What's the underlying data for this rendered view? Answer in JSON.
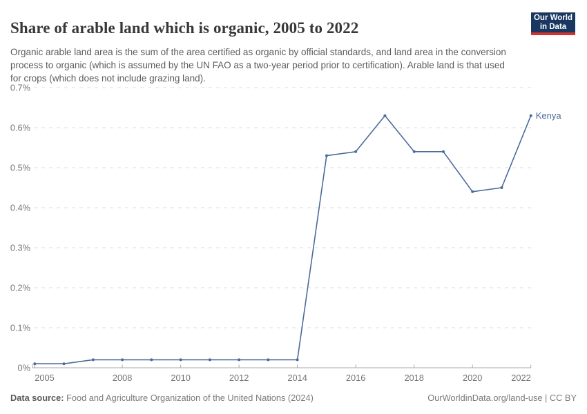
{
  "header": {
    "title": "Share of arable land which is organic, 2005 to 2022",
    "subtitle": "Organic arable land area is the sum of the area certified as organic by official standards, and land area in the conversion process to organic (which is assumed by the UN FAO as a two-year period prior to certification). Arable land is that used for crops (which does not include grazing land).",
    "logo": {
      "line1": "Our World",
      "line2": "in Data"
    }
  },
  "chart_data": {
    "type": "line",
    "title": "Share of arable land which is organic, 2005 to 2022",
    "x": [
      2005,
      2006,
      2007,
      2008,
      2009,
      2010,
      2011,
      2012,
      2013,
      2014,
      2015,
      2016,
      2017,
      2018,
      2019,
      2020,
      2021,
      2022
    ],
    "series": [
      {
        "name": "Kenya",
        "color": "#4c6a9c",
        "values": [
          0.01,
          0.01,
          0.02,
          0.02,
          0.02,
          0.02,
          0.02,
          0.02,
          0.02,
          0.02,
          0.53,
          0.54,
          0.63,
          0.54,
          0.54,
          0.44,
          0.45,
          0.63
        ]
      }
    ],
    "xlabel": "",
    "ylabel": "",
    "ylim": [
      0,
      0.7
    ],
    "yticks": [
      0,
      0.1,
      0.2,
      0.3,
      0.4,
      0.5,
      0.6,
      0.7
    ],
    "ytick_labels": [
      "0%",
      "0.1%",
      "0.2%",
      "0.3%",
      "0.4%",
      "0.5%",
      "0.6%",
      "0.7%"
    ],
    "xticks": [
      2005,
      2008,
      2010,
      2012,
      2014,
      2016,
      2018,
      2020,
      2022
    ],
    "grid": "horizontal-dashed",
    "legend_position": "end-of-line-label",
    "marker": "dot"
  },
  "footer": {
    "datasource_label": "Data source:",
    "datasource_value": " Food and Agriculture Organization of the United Nations (2024)",
    "link": "OurWorldinData.org/land-use | CC BY"
  },
  "colors": {
    "line": "#4c6a9c",
    "logo_navy": "#1a3761",
    "logo_red": "#cf352e",
    "title_text": "#383838",
    "subtitle_text": "#5b5b5b",
    "axis_text": "#737373",
    "gridline": "#dcdcdc"
  }
}
